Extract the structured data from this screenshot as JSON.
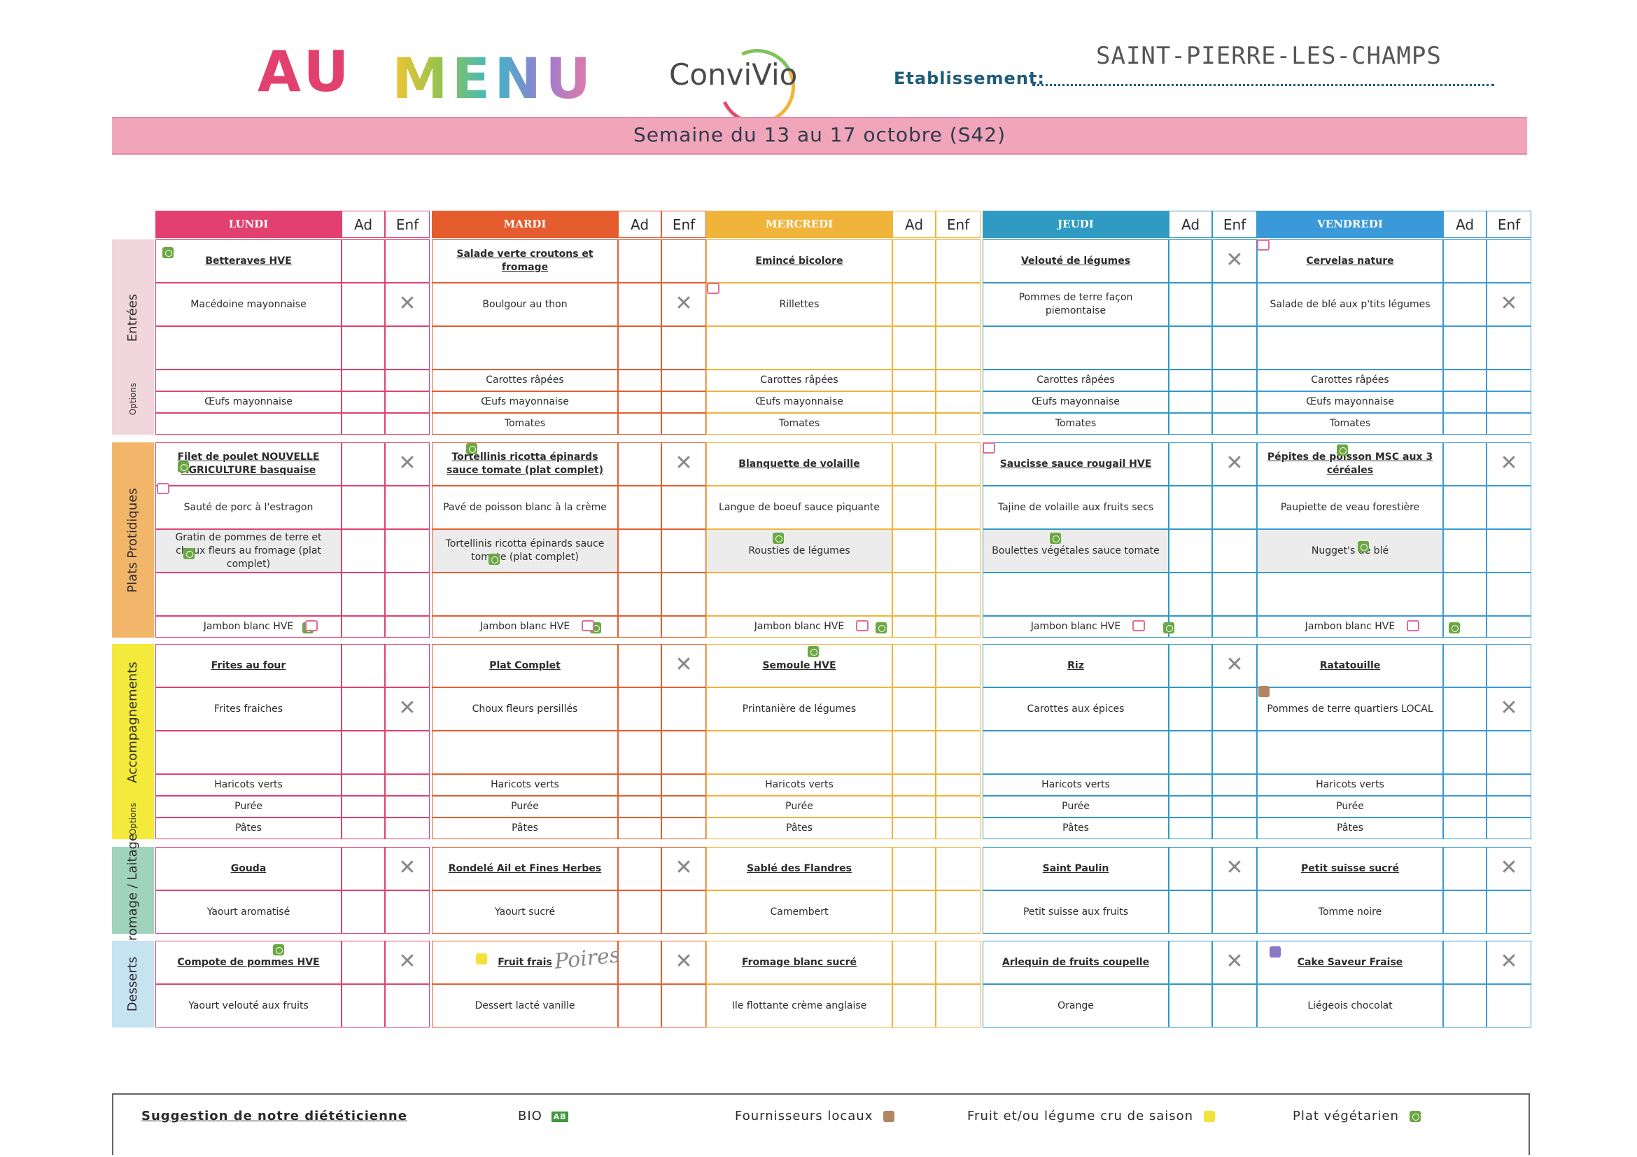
{
  "header": {
    "title_au": "AU",
    "title_menu": "MENU",
    "logo_text": "ConviVio",
    "etablissement_label": "Etablissement:",
    "etablissement_value": "SAINT-PIERRE-LES-CHAMPS",
    "week": "Semaine du 13 au 17 octobre (S42)"
  },
  "colors": {
    "lundi": "#e2406e",
    "mardi": "#e55d2f",
    "mercredi": "#f0b43a",
    "jeudi": "#2f9ac2",
    "vendredi": "#3a9ad9",
    "entrees_side": "#f2d6de",
    "plats_side": "#f2b66a",
    "accomp_side": "#f4ea3b",
    "fromage_side": "#9fd3bb",
    "desserts_side": "#c6e3f2"
  },
  "columns": {
    "ad": "Ad",
    "enf": "Enf",
    "days": [
      "LUNDI",
      "MARDI",
      "MERCREDI",
      "JEUDI",
      "VENDREDI"
    ]
  },
  "sections": {
    "entrees": "Entrées",
    "options": "Options",
    "plats": "Plats Protidiques",
    "accompagnements": "Accompagnements",
    "fromage": "Fromage / Laitage",
    "desserts": "Desserts"
  },
  "entrees": {
    "row1": [
      "Betteraves HVE",
      "Salade verte croutons et fromage",
      "Emincé bicolore",
      "Velouté de légumes",
      "Cervelas nature"
    ],
    "row2": [
      "Macédoine mayonnaise",
      "Boulgour au thon",
      "Rillettes",
      "Pommes de terre façon piemontaise",
      "Salade de blé aux p'tits légumes"
    ],
    "opt1": [
      "",
      "Carottes râpées",
      "Carottes râpées",
      "Carottes râpées",
      "Carottes râpées"
    ],
    "opt2": [
      "Œufs mayonnaise",
      "Œufs mayonnaise",
      "Œufs mayonnaise",
      "Œufs mayonnaise",
      "Œufs mayonnaise"
    ],
    "opt3": [
      "",
      "Tomates",
      "Tomates",
      "Tomates",
      "Tomates"
    ]
  },
  "plats": {
    "row1": [
      "Filet de poulet NOUVELLE AGRICULTURE basquaise",
      "Tortellinis ricotta épinards sauce tomate (plat complet)",
      "Blanquette de volaille",
      "Saucisse sauce rougail HVE",
      "Pépites de poisson MSC aux 3 céréales"
    ],
    "row2": [
      "Sauté de porc à l'estragon",
      "Pavé de poisson blanc à la crème",
      "Langue de boeuf sauce piquante",
      "Tajine de volaille aux fruits secs",
      "Paupiette de veau forestière"
    ],
    "row3": [
      "Gratin de pommes de terre et choux fleurs au fromage (plat complet)",
      "Tortellinis ricotta épinards sauce tomate (plat complet)",
      "Rousties de légumes",
      "Boulettes végétales sauce tomate",
      "Nugget's de blé"
    ],
    "row5": [
      "Jambon blanc HVE",
      "Jambon blanc HVE",
      "Jambon blanc HVE",
      "Jambon blanc HVE",
      "Jambon blanc HVE"
    ]
  },
  "accomp": {
    "row1": [
      "Frites au four",
      "Plat Complet",
      "Semoule HVE",
      "Riz",
      "Ratatouille"
    ],
    "row2": [
      "Frites fraiches",
      "Choux fleurs persillés",
      "Printanière de légumes",
      "Carottes aux épices",
      "Pommes de terre quartiers LOCAL"
    ],
    "opt1": [
      "Haricots verts",
      "Haricots verts",
      "Haricots verts",
      "Haricots verts",
      "Haricots verts"
    ],
    "opt2": [
      "Purée",
      "Purée",
      "Purée",
      "Purée",
      "Purée"
    ],
    "opt3": [
      "Pâtes",
      "Pâtes",
      "Pâtes",
      "Pâtes",
      "Pâtes"
    ]
  },
  "fromage": {
    "row1": [
      "Gouda",
      "Rondelé Ail et Fines Herbes",
      "Sablé des Flandres",
      "Saint Paulin",
      "Petit suisse sucré"
    ],
    "row2": [
      "Yaourt aromatisé",
      "Yaourt sucré",
      "Camembert",
      "Petit suisse aux fruits",
      "Tomme noire"
    ]
  },
  "desserts": {
    "row1": [
      "Compote de pommes HVE",
      "Fruit frais",
      "Fromage blanc sucré",
      "Arlequin de fruits coupelle",
      "Cake Saveur Fraise"
    ],
    "row2": [
      "Yaourt velouté aux fruits",
      "Dessert lacté vanille",
      "Ile flottante crème anglaise",
      "Orange",
      "Liégeois chocolat"
    ],
    "handwritten": "Poires"
  },
  "marks": {
    "x": "✕"
  },
  "legend": {
    "suggestion": "Suggestion de notre diététicienne",
    "bio": "BIO",
    "bio_badge": "AB",
    "local": "Fournisseurs locaux",
    "saison": "Fruit et/ou légume cru de saison",
    "vegetarien": "Plat végétarien"
  }
}
